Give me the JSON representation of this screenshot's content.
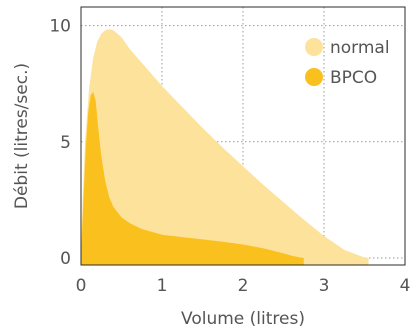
{
  "chart_data": {
    "type": "area",
    "xlabel": "Volume (litres)",
    "ylabel": "Débit (litres/sec.)",
    "xlim": [
      0,
      4
    ],
    "ylim": [
      -0.3,
      10.8
    ],
    "xticks": [
      0,
      1,
      2,
      3,
      4
    ],
    "yticks": [
      0,
      5,
      10
    ],
    "grid": true,
    "legend_position": "top-right",
    "series": [
      {
        "name": "normal",
        "color": "#fde29b",
        "x": [
          0.0,
          0.02,
          0.05,
          0.1,
          0.15,
          0.2,
          0.25,
          0.3,
          0.35,
          0.4,
          0.5,
          0.6,
          0.75,
          1.0,
          1.25,
          1.5,
          1.75,
          2.0,
          2.25,
          2.5,
          2.75,
          3.0,
          3.25,
          3.5,
          3.55
        ],
        "y": [
          0.0,
          2.5,
          5.0,
          7.3,
          8.6,
          9.3,
          9.65,
          9.8,
          9.85,
          9.8,
          9.5,
          9.0,
          8.4,
          7.4,
          6.5,
          5.6,
          4.75,
          3.95,
          3.15,
          2.4,
          1.65,
          0.95,
          0.35,
          0.02,
          0.0
        ]
      },
      {
        "name": "BPCO",
        "color": "#f9c01e",
        "x": [
          0.0,
          0.03,
          0.06,
          0.09,
          0.12,
          0.15,
          0.18,
          0.21,
          0.25,
          0.3,
          0.35,
          0.4,
          0.5,
          0.6,
          0.75,
          1.0,
          1.25,
          1.5,
          1.75,
          2.0,
          2.25,
          2.5,
          2.6,
          2.7,
          2.75
        ],
        "y": [
          0.0,
          2.5,
          4.8,
          6.3,
          7.0,
          7.15,
          6.8,
          5.7,
          4.4,
          3.3,
          2.6,
          2.2,
          1.75,
          1.5,
          1.25,
          1.0,
          0.9,
          0.8,
          0.7,
          0.58,
          0.42,
          0.2,
          0.1,
          0.03,
          0.0
        ]
      }
    ]
  }
}
